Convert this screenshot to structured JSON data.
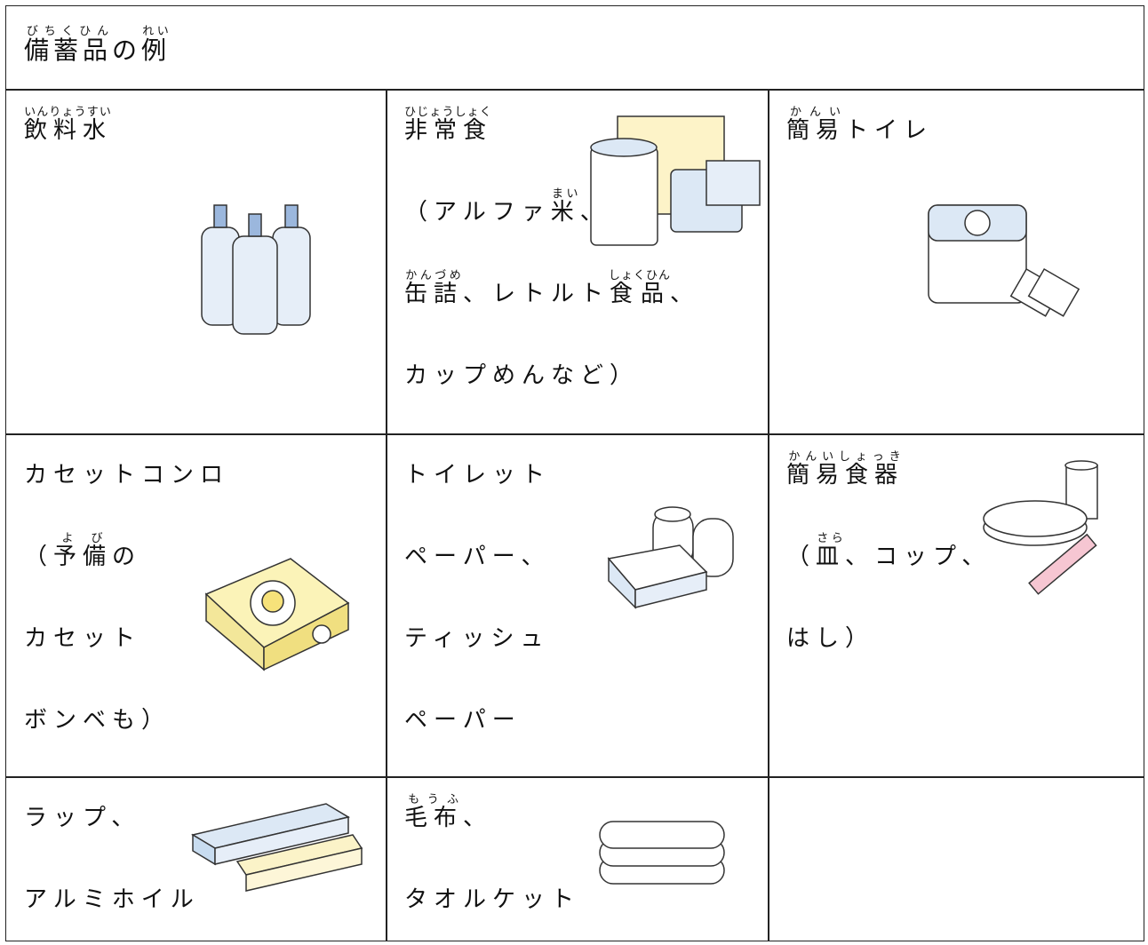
{
  "title": [
    {
      "base": "備蓄品",
      "ruby": "びちくひん"
    },
    "の",
    {
      "base": "例",
      "ruby": "れい"
    }
  ],
  "rows": [
    [
      [
        [
          {
            "base": "飲料水",
            "ruby": "いんりょうすい"
          }
        ]
      ],
      [
        [
          {
            "base": "非常食",
            "ruby": "ひじょうしょく"
          }
        ],
        [
          "（アルファ",
          {
            "base": "米",
            "ruby": "まい"
          },
          "、"
        ],
        [
          {
            "base": "缶詰",
            "ruby": "かんづめ"
          },
          "、レトルト",
          {
            "base": "食品",
            "ruby": "しょくひん"
          },
          "、"
        ],
        [
          "カップめんなど）"
        ]
      ],
      [
        [
          {
            "base": "簡易",
            "ruby": "かんい"
          },
          "トイレ"
        ]
      ]
    ],
    [
      [
        [
          "カセットコンロ"
        ],
        [
          "（",
          {
            "base": "予備",
            "ruby": "よび"
          },
          "の"
        ],
        [
          "カセット"
        ],
        [
          "ボンベも）"
        ]
      ],
      [
        [
          "トイレット"
        ],
        [
          "ペーパー、"
        ],
        [
          "ティッシュ"
        ],
        [
          "ペーパー"
        ]
      ],
      [
        [
          {
            "base": "簡易食器",
            "ruby": "かんいしょっき"
          }
        ],
        [
          "（",
          {
            "base": "皿",
            "ruby": "さら"
          },
          "、コップ、"
        ],
        [
          "はし）"
        ]
      ]
    ],
    [
      [
        [
          "ラップ、"
        ],
        [
          "アルミホイル"
        ]
      ],
      [
        [
          {
            "base": "毛布",
            "ruby": "もうふ"
          },
          "、"
        ],
        [
          "タオルケット"
        ]
      ]
    ]
  ]
}
